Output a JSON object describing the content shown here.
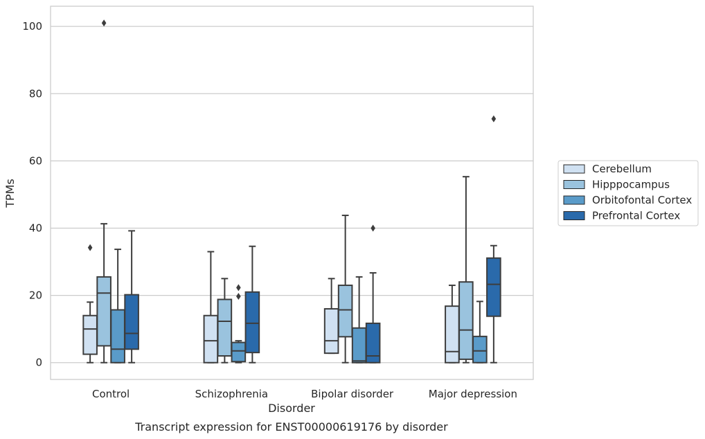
{
  "chart_data": {
    "type": "box",
    "caption": "Transcript expression for ENST00000619176 by disorder",
    "xlabel": "Disorder",
    "ylabel": "TPMs",
    "ylim": [
      -5,
      106
    ],
    "yticks": [
      0,
      20,
      40,
      60,
      80,
      100
    ],
    "grid": "horizontal",
    "legend_position": "right",
    "categories": [
      "Control",
      "Schizophrenia",
      "Bipolar disorder",
      "Major depression"
    ],
    "series": [
      {
        "name": "Cerebellum",
        "color": "#d0e1f2",
        "boxes": [
          {
            "whisker_low": 0,
            "q1": 2.5,
            "median": 10,
            "q3": 14,
            "whisker_high": 18,
            "outliers": [
              34.2
            ]
          },
          {
            "whisker_low": 0,
            "q1": 0,
            "median": 6.5,
            "q3": 14,
            "whisker_high": 33,
            "outliers": []
          },
          {
            "whisker_low": 2.8,
            "q1": 2.8,
            "median": 6.5,
            "q3": 16,
            "whisker_high": 25,
            "outliers": []
          },
          {
            "whisker_low": 0,
            "q1": 0,
            "median": 3.3,
            "q3": 16.8,
            "whisker_high": 23,
            "outliers": []
          }
        ]
      },
      {
        "name": "Hipppocampus",
        "color": "#9ac3de",
        "boxes": [
          {
            "whisker_low": 0,
            "q1": 5,
            "median": 20.7,
            "q3": 25.5,
            "whisker_high": 41.3,
            "outliers": [
              101
            ]
          },
          {
            "whisker_low": 0,
            "q1": 2,
            "median": 12.3,
            "q3": 18.8,
            "whisker_high": 25,
            "outliers": []
          },
          {
            "whisker_low": 0,
            "q1": 7.7,
            "median": 15.7,
            "q3": 23,
            "whisker_high": 43.8,
            "outliers": []
          },
          {
            "whisker_low": 0,
            "q1": 1,
            "median": 9.7,
            "q3": 24,
            "whisker_high": 55.3,
            "outliers": []
          }
        ]
      },
      {
        "name": "Orbitofontal Cortex",
        "color": "#5a9bc9",
        "boxes": [
          {
            "whisker_low": 0,
            "q1": 0,
            "median": 4,
            "q3": 15.7,
            "whisker_high": 33.7,
            "outliers": []
          },
          {
            "whisker_low": 0,
            "q1": 0.3,
            "median": 3.5,
            "q3": 6,
            "whisker_high": 6.5,
            "outliers": [
              19.7,
              22.3
            ]
          },
          {
            "whisker_low": 0,
            "q1": 0,
            "median": 0.5,
            "q3": 10.3,
            "whisker_high": 25.5,
            "outliers": []
          },
          {
            "whisker_low": 0,
            "q1": 0,
            "median": 3.5,
            "q3": 7.8,
            "whisker_high": 18.2,
            "outliers": []
          }
        ]
      },
      {
        "name": "Prefrontal Cortex",
        "color": "#2a6aab",
        "boxes": [
          {
            "whisker_low": 0,
            "q1": 4,
            "median": 8.7,
            "q3": 20.2,
            "whisker_high": 39.2,
            "outliers": []
          },
          {
            "whisker_low": 0,
            "q1": 3,
            "median": 11.7,
            "q3": 21,
            "whisker_high": 34.6,
            "outliers": []
          },
          {
            "whisker_low": 0,
            "q1": 0,
            "median": 2,
            "q3": 11.7,
            "whisker_high": 26.7,
            "outliers": [
              40
            ]
          },
          {
            "whisker_low": 0,
            "q1": 13.8,
            "median": 23.3,
            "q3": 31.1,
            "whisker_high": 34.8,
            "outliers": [
              72.5
            ]
          }
        ]
      }
    ]
  }
}
